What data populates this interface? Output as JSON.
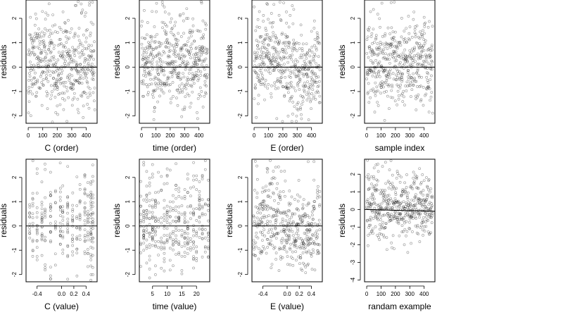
{
  "figure": {
    "background": "#ffffff",
    "point_color": "#000000",
    "point_shape": "hollow-circle",
    "point_opacity": 0.42
  },
  "chart_data": [
    {
      "type": "scatter",
      "panel": "C-order",
      "xlabel": "C (order)",
      "ylabel": "residuals",
      "xlim": [
        -15,
        475
      ],
      "ylim": [
        -2.3,
        2.75
      ],
      "xticks": [
        0,
        100,
        200,
        300,
        400
      ],
      "xtick_labels": [
        "0",
        "100",
        "200",
        "300",
        "400"
      ],
      "yticks": [
        -2,
        -1,
        0,
        1,
        2
      ],
      "ytick_labels": [
        "-2",
        "-1",
        "0",
        "1",
        "2"
      ],
      "reference_line": {
        "slope": 0,
        "intercept": 0
      },
      "points": {
        "generator": "index",
        "n": 460,
        "x_min": 0,
        "x_max": 459,
        "pattern": "flat",
        "seed": 11
      }
    },
    {
      "type": "scatter",
      "panel": "time-order",
      "xlabel": "time (order)",
      "ylabel": "residuals",
      "xlim": [
        -15,
        475
      ],
      "ylim": [
        -2.3,
        2.75
      ],
      "xticks": [
        0,
        100,
        200,
        300,
        400
      ],
      "xtick_labels": [
        "0",
        "100",
        "200",
        "300",
        "400"
      ],
      "yticks": [
        -2,
        -1,
        0,
        1,
        2
      ],
      "ytick_labels": [
        "-2",
        "-1",
        "0",
        "1",
        "2"
      ],
      "reference_line": {
        "slope": 0,
        "intercept": 0
      },
      "points": {
        "generator": "index",
        "n": 460,
        "x_min": 0,
        "x_max": 459,
        "pattern": "flat",
        "seed": 23
      }
    },
    {
      "type": "scatter",
      "panel": "E-order",
      "xlabel": "E (order)",
      "ylabel": "residuals",
      "xlim": [
        -15,
        475
      ],
      "ylim": [
        -2.3,
        2.75
      ],
      "xticks": [
        0,
        100,
        200,
        300,
        400
      ],
      "xtick_labels": [
        "0",
        "100",
        "200",
        "300",
        "400"
      ],
      "yticks": [
        -2,
        -1,
        0,
        1,
        2
      ],
      "ytick_labels": [
        "-2",
        "-1",
        "0",
        "1",
        "2"
      ],
      "reference_line": {
        "slope": 0,
        "intercept": 0
      },
      "points": {
        "generator": "index",
        "n": 460,
        "x_min": 0,
        "x_max": 459,
        "pattern": "wave",
        "seed": 37
      }
    },
    {
      "type": "scatter",
      "panel": "sample-index",
      "xlabel": "sample index",
      "ylabel": "residuals",
      "xlim": [
        -15,
        475
      ],
      "ylim": [
        -2.3,
        2.75
      ],
      "xticks": [
        0,
        100,
        200,
        300,
        400
      ],
      "xtick_labels": [
        "0",
        "100",
        "200",
        "300",
        "400"
      ],
      "yticks": [
        -2,
        -1,
        0,
        1,
        2
      ],
      "ytick_labels": [
        "-2",
        "-1",
        "0",
        "1",
        "2"
      ],
      "reference_line": {
        "slope": 0,
        "intercept": 0
      },
      "points": {
        "generator": "index",
        "n": 460,
        "x_min": 0,
        "x_max": 459,
        "pattern": "flat",
        "seed": 41
      }
    },
    {
      "type": "scatter",
      "panel": "C-value",
      "xlabel": "C (value)",
      "ylabel": "residuals",
      "xlim": [
        -0.58,
        0.58
      ],
      "ylim": [
        -2.3,
        2.75
      ],
      "xticks": [
        -0.4,
        0.0,
        0.2,
        0.4
      ],
      "xtick_labels": [
        "-0.4",
        "0.0",
        "0.2",
        "0.4"
      ],
      "yticks": [
        -2,
        -1,
        0,
        1,
        2
      ],
      "ytick_labels": [
        "-2",
        "-1",
        "0",
        "1",
        "2"
      ],
      "reference_line": {
        "slope": 0,
        "intercept": 0
      },
      "points": {
        "generator": "discrete",
        "n": 300,
        "levels": [
          -0.52,
          -0.47,
          -0.4,
          -0.32,
          -0.27,
          -0.18,
          -0.1,
          -0.02,
          0.02,
          0.1,
          0.18,
          0.25,
          0.3,
          0.38,
          0.43,
          0.48,
          0.51
        ],
        "seed": 53
      }
    },
    {
      "type": "scatter",
      "panel": "time-value",
      "xlabel": "time (value)",
      "ylabel": "residuals",
      "xlim": [
        0.5,
        24.5
      ],
      "ylim": [
        -2.3,
        2.75
      ],
      "xticks": [
        5,
        10,
        15,
        20
      ],
      "xtick_labels": [
        "5",
        "10",
        "15",
        "20"
      ],
      "yticks": [
        -2,
        -1,
        0,
        1,
        2
      ],
      "ytick_labels": [
        "-2",
        "-1",
        "0",
        "1",
        "2"
      ],
      "reference_line": {
        "slope": 0,
        "intercept": 0
      },
      "points": {
        "generator": "discrete",
        "n": 380,
        "levels": [
          1,
          2,
          3,
          4,
          5,
          6,
          7,
          8,
          9,
          10,
          11,
          12,
          13,
          14,
          15,
          16,
          17,
          18,
          19,
          20,
          21,
          22,
          23,
          24
        ],
        "seed": 67
      }
    },
    {
      "type": "scatter",
      "panel": "E-value",
      "xlabel": "E (value)",
      "ylabel": "residuals",
      "xlim": [
        -0.58,
        0.58
      ],
      "ylim": [
        -2.3,
        2.75
      ],
      "xticks": [
        -0.4,
        0.0,
        0.2,
        0.4
      ],
      "xtick_labels": [
        "-0.4",
        "0.0",
        "0.2",
        "0.4"
      ],
      "yticks": [
        -2,
        -1,
        0,
        1,
        2
      ],
      "ytick_labels": [
        "-2",
        "-1",
        "0",
        "1",
        "2"
      ],
      "reference_line": {
        "slope": 0,
        "intercept": 0
      },
      "points": {
        "generator": "continuous",
        "n": 440,
        "x_min": -0.56,
        "x_max": 0.55,
        "pattern": "wave",
        "seed": 71
      }
    },
    {
      "type": "scatter",
      "panel": "random-example",
      "xlabel": "randam example",
      "ylabel": "residuals",
      "xlim": [
        -15,
        475
      ],
      "ylim": [
        -4.1,
        2.85
      ],
      "xticks": [
        0,
        100,
        200,
        300,
        400
      ],
      "xtick_labels": [
        "0",
        "100",
        "200",
        "300",
        "400"
      ],
      "yticks": [
        -4,
        -3,
        -2,
        -1,
        0,
        1,
        2
      ],
      "ytick_labels": [
        "-4",
        "-3",
        "-2",
        "-1",
        "0",
        "1",
        "2"
      ],
      "reference_line": {
        "slope": -0.00022,
        "intercept": 0.0
      },
      "points": {
        "generator": "index",
        "n": 460,
        "x_min": 0,
        "x_max": 459,
        "pattern": "flat",
        "seed": 89
      }
    }
  ]
}
